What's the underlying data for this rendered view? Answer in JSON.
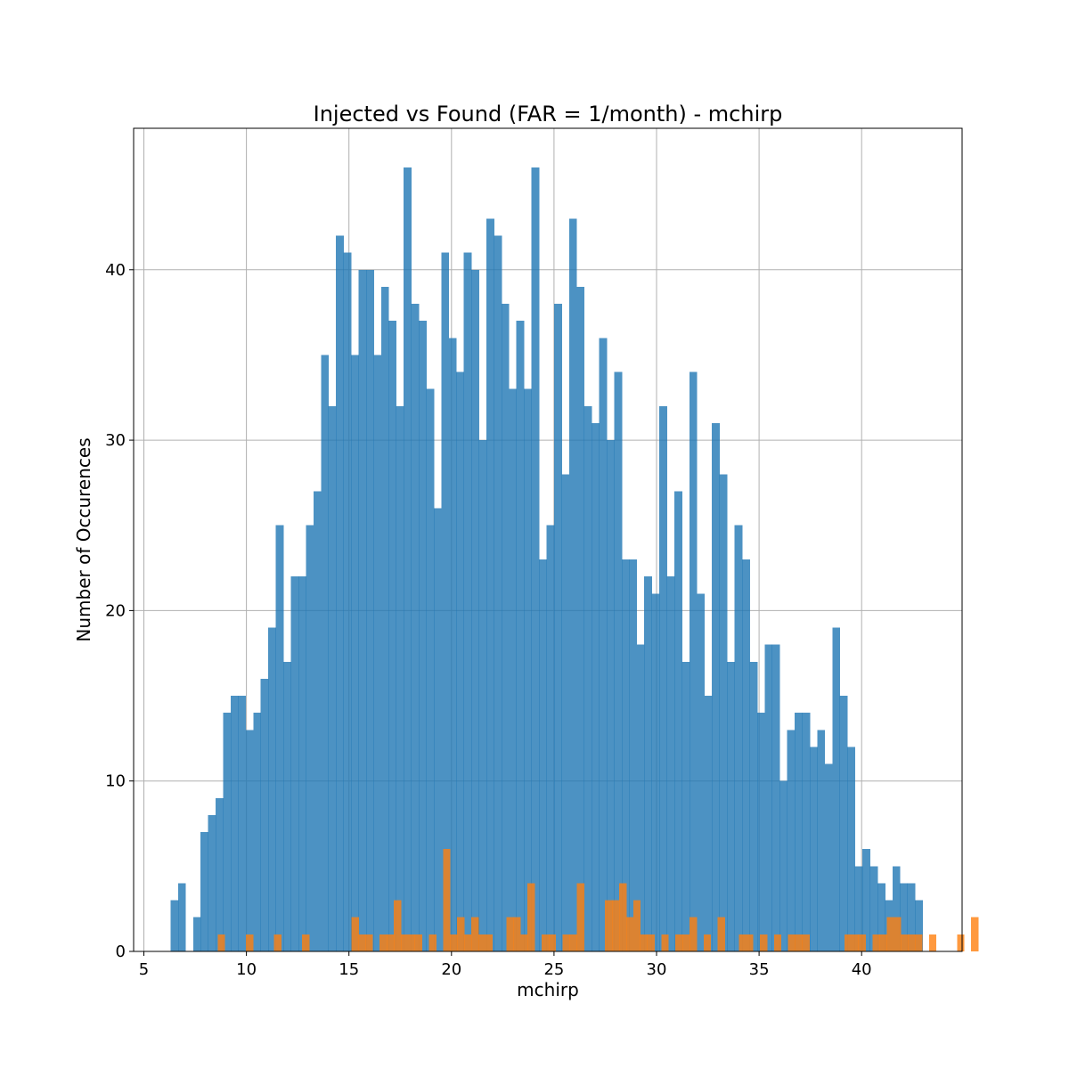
{
  "chart_data": {
    "type": "bar",
    "title": "Injected vs Found (FAR = 1/month) - mchirp",
    "xlabel": "mchirp",
    "ylabel": "Number of Occurences",
    "xlim": [
      4.5,
      44.9
    ],
    "ylim": [
      0,
      48.3
    ],
    "xticks": [
      "5",
      "10",
      "15",
      "20",
      "25",
      "30",
      "35",
      "40"
    ],
    "yticks": [
      "0",
      "10",
      "20",
      "30",
      "40"
    ],
    "grid": true,
    "colors": {
      "injected": "#1f77b4",
      "found": "#ff7f0e"
    },
    "alpha": 0.8,
    "series": [
      {
        "key": "injected",
        "x_start": 6.3,
        "bin_width": 0.3667,
        "values": [
          3,
          4,
          0,
          2,
          7,
          8,
          9,
          14,
          15,
          15,
          13,
          14,
          16,
          19,
          25,
          17,
          22,
          22,
          25,
          27,
          35,
          32,
          42,
          41,
          35,
          40,
          40,
          35,
          39,
          37,
          32,
          46,
          38,
          37,
          33,
          26,
          41,
          36,
          34,
          41,
          40,
          30,
          43,
          42,
          38,
          33,
          37,
          33,
          46,
          23,
          25,
          38,
          28,
          43,
          39,
          32,
          31,
          36,
          30,
          34,
          23,
          23,
          18,
          22,
          21,
          32,
          22,
          27,
          17,
          34,
          21,
          15,
          31,
          28,
          17,
          25,
          23,
          17,
          14,
          18,
          18,
          10,
          13,
          14,
          14,
          12,
          13,
          11,
          19,
          15,
          12,
          5,
          6,
          5,
          4,
          3,
          5,
          4,
          4,
          3
        ]
      },
      {
        "key": "found",
        "x_start": 8.6,
        "bin_width": 0.3434,
        "values": [
          1,
          0,
          0,
          0,
          1,
          0,
          0,
          0,
          1,
          0,
          0,
          0,
          1,
          0,
          0,
          0,
          0,
          0,
          0,
          2,
          1,
          1,
          0,
          1,
          1,
          3,
          1,
          1,
          1,
          0,
          1,
          0,
          6,
          1,
          2,
          1,
          2,
          1,
          1,
          0,
          0,
          2,
          2,
          1,
          4,
          0,
          1,
          1,
          0,
          1,
          1,
          4,
          0,
          0,
          0,
          3,
          3,
          4,
          2,
          3,
          1,
          1,
          0,
          1,
          0,
          1,
          1,
          2,
          0,
          1,
          0,
          2,
          0,
          0,
          1,
          1,
          0,
          1,
          0,
          1,
          0,
          1,
          1,
          1,
          0,
          0,
          0,
          0,
          0,
          1,
          1,
          1,
          0,
          1,
          1,
          2,
          2,
          1,
          1,
          1,
          0,
          1,
          0,
          0,
          0,
          1,
          0,
          2
        ]
      }
    ]
  }
}
